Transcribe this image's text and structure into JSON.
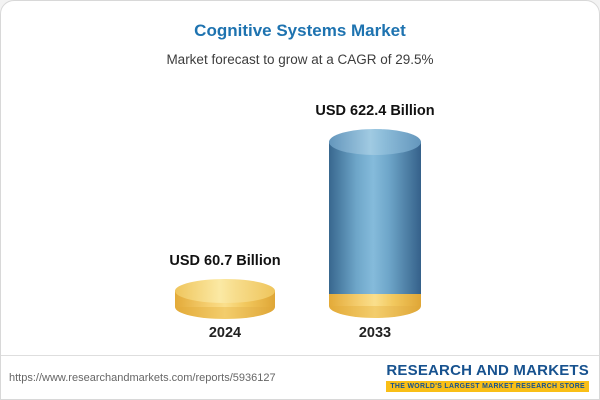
{
  "header": {
    "title": "Cognitive Systems Market",
    "subtitle": "Market forecast to grow at a CAGR of 29.5%"
  },
  "chart_data": {
    "type": "bar",
    "title": "Cognitive Systems Market",
    "subtitle": "Market forecast to grow at a CAGR of 29.5%",
    "categories": [
      "2024",
      "2033"
    ],
    "values": [
      60.7,
      622.4
    ],
    "value_labels": [
      "USD 60.7 Billion",
      "USD 622.4 Billion"
    ],
    "unit": "USD Billion",
    "cagr": "29.5%",
    "colors": {
      "bar_2024": "#f2c85e",
      "bar_2033": "#6ea6c9",
      "bar_2033_base_band": "#f2c85e",
      "title": "#1e73b0"
    },
    "axes_shown": false,
    "grid": false,
    "legend": "none"
  },
  "footer": {
    "url": "https://www.researchandmarkets.com/reports/5936127",
    "logo_text": "RESEARCH AND MARKETS",
    "logo_tagline": "THE WORLD'S LARGEST MARKET RESEARCH STORE"
  }
}
